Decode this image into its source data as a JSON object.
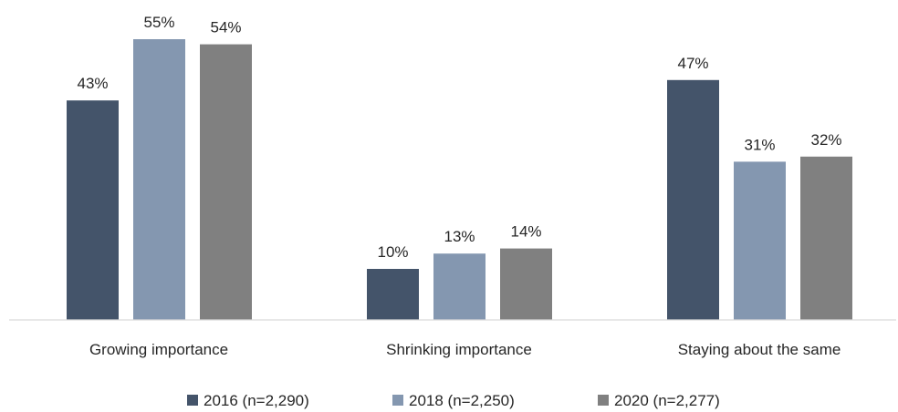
{
  "chart_data": {
    "type": "bar",
    "categories": [
      "Growing importance",
      "Shrinking importance",
      "Staying about the same"
    ],
    "series": [
      {
        "name": "2016 (n=2,290)",
        "values": [
          43,
          10,
          47
        ],
        "color": "#44546a"
      },
      {
        "name": "2018 (n=2,250)",
        "values": [
          55,
          13,
          31
        ],
        "color": "#8497b0"
      },
      {
        "name": "2020 (n=2,277)",
        "values": [
          54,
          14,
          32
        ],
        "color": "#808080"
      }
    ],
    "value_suffix": "%",
    "data_labels": [
      "43%",
      "55%",
      "54%",
      "10%",
      "13%",
      "14%",
      "47%",
      "31%",
      "32%"
    ],
    "ylim": [
      0,
      55
    ],
    "grid": false,
    "legend_position": "bottom"
  }
}
